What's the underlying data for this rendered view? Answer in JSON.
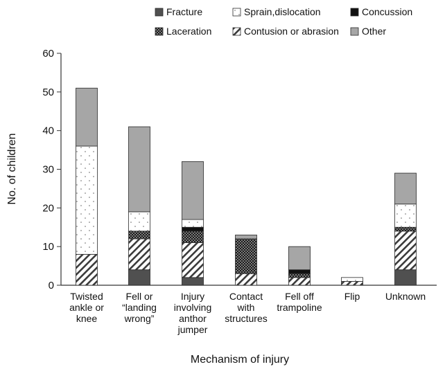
{
  "chart_data": {
    "type": "bar",
    "stacked": true,
    "xlabel": "Mechanism of injury",
    "ylabel": "No. of children",
    "ylim": [
      0,
      60
    ],
    "yticks": [
      0,
      10,
      20,
      30,
      40,
      50,
      60
    ],
    "grid": false,
    "legend_position": "top",
    "categories": [
      [
        "Twisted",
        "ankle or",
        "knee"
      ],
      [
        "Fell or",
        "“landing",
        "wrong”"
      ],
      [
        "Injury",
        "involving",
        "anthor",
        "jumper"
      ],
      [
        "Contact",
        "with",
        "structures"
      ],
      [
        "Fell off",
        "trampoline"
      ],
      [
        "Flip"
      ],
      [
        "Unknown"
      ]
    ],
    "series": [
      {
        "name": "Fracture",
        "fill": "fracture",
        "values": [
          0,
          4,
          2,
          0,
          0,
          0,
          4
        ]
      },
      {
        "name": "Contusion or abrasion",
        "fill": "contusion",
        "values": [
          8,
          8,
          9,
          3,
          2,
          1,
          10
        ]
      },
      {
        "name": "Laceration",
        "fill": "laceration",
        "values": [
          0,
          2,
          3,
          9,
          1,
          0,
          1
        ]
      },
      {
        "name": "Concussion",
        "fill": "concussion",
        "values": [
          0,
          0,
          1,
          0,
          1,
          0,
          0
        ]
      },
      {
        "name": "Sprain,dislocation",
        "fill": "sprain",
        "values": [
          28,
          5,
          2,
          0,
          0,
          1,
          6
        ]
      },
      {
        "name": "Other",
        "fill": "other",
        "values": [
          15,
          22,
          15,
          1,
          6,
          0,
          8
        ]
      }
    ],
    "legend_rows": [
      [
        "Fracture",
        "Sprain,dislocation",
        "Concussion"
      ],
      [
        "Laceration",
        "Contusion or abrasion",
        "Other"
      ]
    ],
    "colors": {
      "fracture": "#505050",
      "other": "#a6a6a6",
      "concussion": "#111111",
      "axis": "#333333"
    }
  }
}
